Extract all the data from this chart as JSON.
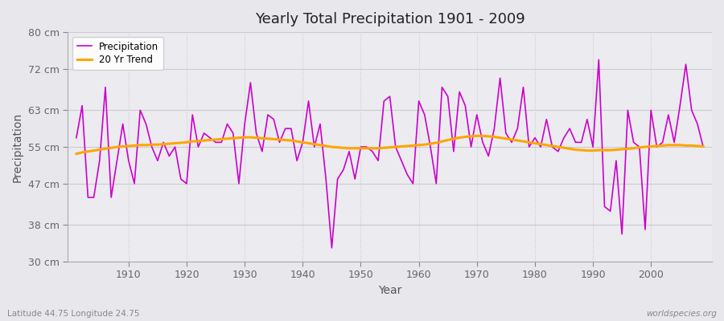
{
  "title": "Yearly Total Precipitation 1901 - 2009",
  "xlabel": "Year",
  "ylabel": "Precipitation",
  "bottom_left_label": "Latitude 44.75 Longitude 24.75",
  "bottom_right_label": "worldspecies.org",
  "line_color": "#CC00CC",
  "trend_color": "#FFA500",
  "bg_color": "#E8E8EC",
  "plot_bg_color": "#EBEBF0",
  "ylim": [
    30,
    80
  ],
  "yticks": [
    30,
    38,
    47,
    55,
    63,
    72,
    80
  ],
  "ytick_labels": [
    "30 cm",
    "38 cm",
    "47 cm",
    "55 cm",
    "63 cm",
    "72 cm",
    "80 cm"
  ],
  "xticks": [
    1910,
    1920,
    1930,
    1940,
    1950,
    1960,
    1970,
    1980,
    1990,
    2000
  ],
  "years": [
    1901,
    1902,
    1903,
    1904,
    1905,
    1906,
    1907,
    1908,
    1909,
    1910,
    1911,
    1912,
    1913,
    1914,
    1915,
    1916,
    1917,
    1918,
    1919,
    1920,
    1921,
    1922,
    1923,
    1924,
    1925,
    1926,
    1927,
    1928,
    1929,
    1930,
    1931,
    1932,
    1933,
    1934,
    1935,
    1936,
    1937,
    1938,
    1939,
    1940,
    1941,
    1942,
    1943,
    1944,
    1945,
    1946,
    1947,
    1948,
    1949,
    1950,
    1951,
    1952,
    1953,
    1954,
    1955,
    1956,
    1957,
    1958,
    1959,
    1960,
    1961,
    1962,
    1963,
    1964,
    1965,
    1966,
    1967,
    1968,
    1969,
    1970,
    1971,
    1972,
    1973,
    1974,
    1975,
    1976,
    1977,
    1978,
    1979,
    1980,
    1981,
    1982,
    1983,
    1984,
    1985,
    1986,
    1987,
    1988,
    1989,
    1990,
    1991,
    1992,
    1993,
    1994,
    1995,
    1996,
    1997,
    1998,
    1999,
    2000,
    2001,
    2002,
    2003,
    2004,
    2005,
    2006,
    2007,
    2008,
    2009
  ],
  "precip": [
    57,
    64,
    44,
    44,
    52,
    68,
    44,
    52,
    60,
    52,
    47,
    63,
    60,
    55,
    52,
    56,
    53,
    55,
    48,
    47,
    62,
    55,
    58,
    57,
    56,
    56,
    60,
    58,
    47,
    60,
    69,
    58,
    54,
    62,
    61,
    56,
    59,
    59,
    52,
    56,
    65,
    55,
    60,
    48,
    33,
    48,
    50,
    54,
    48,
    55,
    55,
    54,
    52,
    65,
    66,
    55,
    52,
    49,
    47,
    65,
    62,
    55,
    47,
    68,
    66,
    54,
    67,
    64,
    55,
    62,
    56,
    53,
    59,
    70,
    58,
    56,
    59,
    68,
    55,
    57,
    55,
    61,
    55,
    54,
    57,
    59,
    56,
    56,
    61,
    55,
    74,
    42,
    41,
    52,
    36,
    63,
    56,
    55,
    37,
    63,
    55,
    56,
    62,
    56,
    64,
    73,
    63,
    60,
    55
  ],
  "trend": [
    53.5,
    53.8,
    54.0,
    54.2,
    54.4,
    54.6,
    54.8,
    55.0,
    55.1,
    55.2,
    55.3,
    55.4,
    55.4,
    55.5,
    55.5,
    55.6,
    55.7,
    55.8,
    55.9,
    56.0,
    56.2,
    56.3,
    56.4,
    56.5,
    56.6,
    56.7,
    56.8,
    56.9,
    57.0,
    57.1,
    57.1,
    57.0,
    56.9,
    56.8,
    56.7,
    56.6,
    56.5,
    56.4,
    56.2,
    56.0,
    55.8,
    55.6,
    55.4,
    55.2,
    55.0,
    54.9,
    54.8,
    54.7,
    54.7,
    54.7,
    54.7,
    54.7,
    54.7,
    54.8,
    54.9,
    55.0,
    55.1,
    55.2,
    55.3,
    55.4,
    55.5,
    55.7,
    55.9,
    56.2,
    56.5,
    56.8,
    57.0,
    57.2,
    57.3,
    57.4,
    57.4,
    57.3,
    57.2,
    57.0,
    56.8,
    56.6,
    56.4,
    56.2,
    56.0,
    55.8,
    55.6,
    55.4,
    55.2,
    55.0,
    54.8,
    54.6,
    54.4,
    54.3,
    54.2,
    54.2,
    54.3,
    54.3,
    54.3,
    54.4,
    54.5,
    54.6,
    54.7,
    54.9,
    55.0,
    55.1,
    55.2,
    55.3,
    55.4,
    55.4,
    55.4,
    55.3,
    55.3,
    55.2,
    55.1
  ]
}
